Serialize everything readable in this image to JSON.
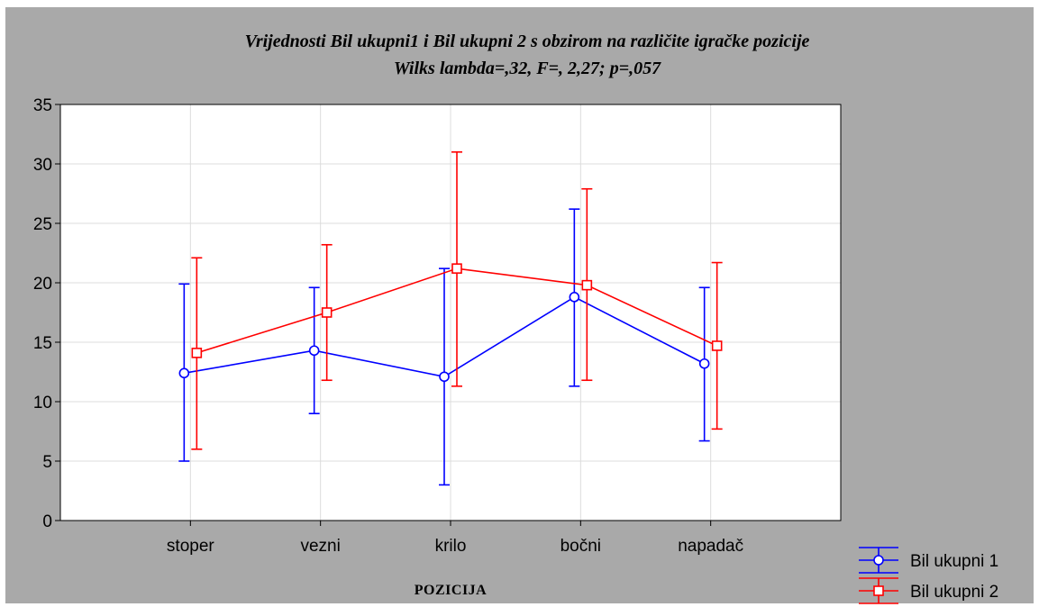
{
  "chart_data": {
    "type": "line",
    "title": "Vrijednosti Bil ukupni1 i Bil ukupni 2 s obzirom na različite igračke pozicije",
    "subtitle": "Wilks lambda=,32, F=, 2,27; p=,057",
    "xlabel": "POZICIJA",
    "ylabel": "",
    "categories": [
      "stoper",
      "vezni",
      "krilo",
      "bočni",
      "napadač"
    ],
    "ylim": [
      0,
      35
    ],
    "yticks": [
      0,
      5,
      10,
      15,
      20,
      25,
      30,
      35
    ],
    "grid": true,
    "legend_position": "bottom-right",
    "series": [
      {
        "name": "Bil ukupni 1",
        "color": "#0000ff",
        "marker": "circle",
        "values": [
          12.4,
          14.3,
          12.1,
          18.8,
          13.2
        ],
        "lower": [
          5.0,
          9.0,
          3.0,
          11.3,
          6.7
        ],
        "upper": [
          19.9,
          19.6,
          21.2,
          26.2,
          19.6
        ]
      },
      {
        "name": "Bil ukupni 2",
        "color": "#ff0000",
        "marker": "square",
        "values": [
          14.1,
          17.5,
          21.2,
          19.8,
          14.7
        ],
        "lower": [
          6.0,
          11.8,
          11.3,
          11.8,
          7.7
        ],
        "upper": [
          22.1,
          23.2,
          31.0,
          27.9,
          21.7
        ]
      }
    ]
  }
}
